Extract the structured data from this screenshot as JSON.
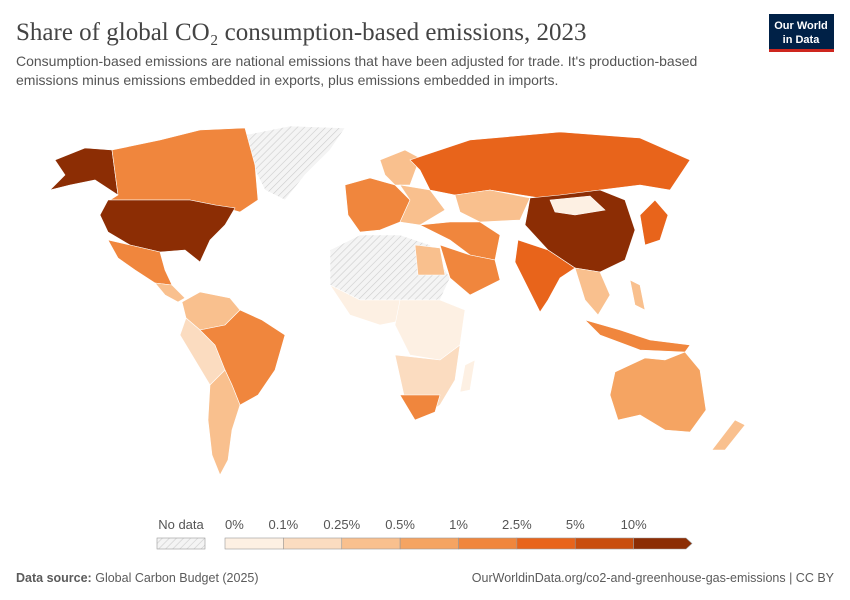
{
  "header": {
    "title": "Share of global CO₂ consumption-based emissions, 2023",
    "subtitle_lines": [
      "Consumption-based emissions are national emissions that have been adjusted for trade. It's production-based",
      "emissions minus emissions embedded in exports, plus emissions embedded in imports."
    ]
  },
  "logo": {
    "lines": [
      "Our World",
      "in Data"
    ]
  },
  "legend": {
    "no_data": "No data",
    "labels": [
      "0%",
      "0.1%",
      "0.25%",
      "0.5%",
      "1%",
      "2.5%",
      "5%",
      "10%"
    ],
    "colors": [
      "#fdf0e3",
      "#fbdcc0",
      "#f9c08e",
      "#f5a462",
      "#f0863d",
      "#e8641b",
      "#c94e0e",
      "#8c2d04"
    ]
  },
  "footer": {
    "source_label": "Data source:",
    "source": "Global Carbon Budget (2025)",
    "url": "OurWorldinData.org/co2-and-greenhouse-gas-emissions | CC BY"
  }
}
